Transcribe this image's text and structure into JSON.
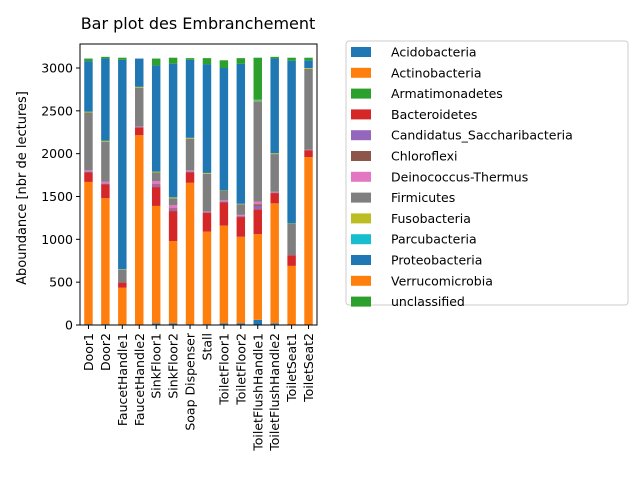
{
  "chart_data": {
    "type": "bar",
    "stacked": true,
    "title": "Bar plot des Embranchement",
    "xlabel": "",
    "ylabel": "Aboundance [nbr de lectures]",
    "ylim": [
      0,
      3280
    ],
    "yticks": [
      0,
      500,
      1000,
      1500,
      2000,
      2500,
      3000
    ],
    "legend_position": "outside-right",
    "grid": false,
    "categories": [
      "Door1",
      "Door2",
      "FaucetHandle1",
      "FaucetHandle2",
      "SinkFloor1",
      "SinkFloor2",
      "Soap Dispenser",
      "Stall",
      "ToiletFloor1",
      "ToiletFloor2",
      "ToiletFlushHandle1",
      "ToiletFlushHandle2",
      "ToiletSeat1",
      "ToiletSeat2"
    ],
    "series": [
      {
        "name": "Acidobacteria",
        "color": "#1f77b4",
        "values": [
          10,
          10,
          5,
          5,
          20,
          20,
          10,
          10,
          20,
          20,
          60,
          20,
          5,
          5
        ]
      },
      {
        "name": "Actinobacteria",
        "color": "#ff7f0e",
        "values": [
          1660,
          1470,
          430,
          2210,
          1370,
          960,
          1650,
          1080,
          1140,
          1010,
          1000,
          1400,
          685,
          1955
        ]
      },
      {
        "name": "Armatimonadetes",
        "color": "#2ca02c",
        "values": [
          0,
          0,
          0,
          0,
          0,
          0,
          0,
          0,
          0,
          0,
          0,
          0,
          0,
          0
        ]
      },
      {
        "name": "Bacteroidetes",
        "color": "#d62728",
        "values": [
          110,
          160,
          60,
          90,
          220,
          350,
          120,
          220,
          270,
          230,
          290,
          120,
          125,
          80
        ]
      },
      {
        "name": "Candidatus_Saccharibacteria",
        "color": "#9467bd",
        "values": [
          10,
          10,
          0,
          5,
          20,
          20,
          10,
          5,
          10,
          10,
          40,
          5,
          0,
          5
        ]
      },
      {
        "name": "Chloroflexi",
        "color": "#8c564b",
        "values": [
          5,
          5,
          0,
          0,
          10,
          10,
          5,
          5,
          5,
          5,
          20,
          5,
          0,
          0
        ]
      },
      {
        "name": "Deinococcus-Thermus",
        "color": "#e377c2",
        "values": [
          10,
          20,
          0,
          5,
          40,
          40,
          10,
          5,
          10,
          10,
          30,
          5,
          0,
          0
        ]
      },
      {
        "name": "Firmicutes",
        "color": "#7f7f7f",
        "values": [
          675,
          465,
          150,
          455,
          100,
          80,
          370,
          440,
          110,
          125,
          1170,
          440,
          365,
          945
        ]
      },
      {
        "name": "Fusobacteria",
        "color": "#bcbd22",
        "values": [
          10,
          10,
          5,
          10,
          10,
          10,
          10,
          10,
          5,
          5,
          10,
          10,
          5,
          10
        ]
      },
      {
        "name": "Parcubacteria",
        "color": "#17becf",
        "values": [
          0,
          0,
          0,
          0,
          0,
          0,
          0,
          0,
          0,
          0,
          10,
          0,
          0,
          0
        ]
      },
      {
        "name": "Proteobacteria",
        "color": "#1f77b4",
        "values": [
          590,
          960,
          2445,
          330,
          1240,
          1560,
          910,
          1270,
          1430,
          1635,
          0,
          1105,
          1900,
          90
        ]
      },
      {
        "name": "Verrucomicrobia",
        "color": "#ff7f0e",
        "values": [
          0,
          0,
          0,
          0,
          0,
          0,
          0,
          0,
          0,
          0,
          0,
          0,
          0,
          0
        ]
      },
      {
        "name": "unclassified",
        "color": "#2ca02c",
        "values": [
          30,
          20,
          25,
          0,
          80,
          70,
          20,
          70,
          90,
          65,
          490,
          20,
          35,
          30
        ]
      }
    ]
  }
}
